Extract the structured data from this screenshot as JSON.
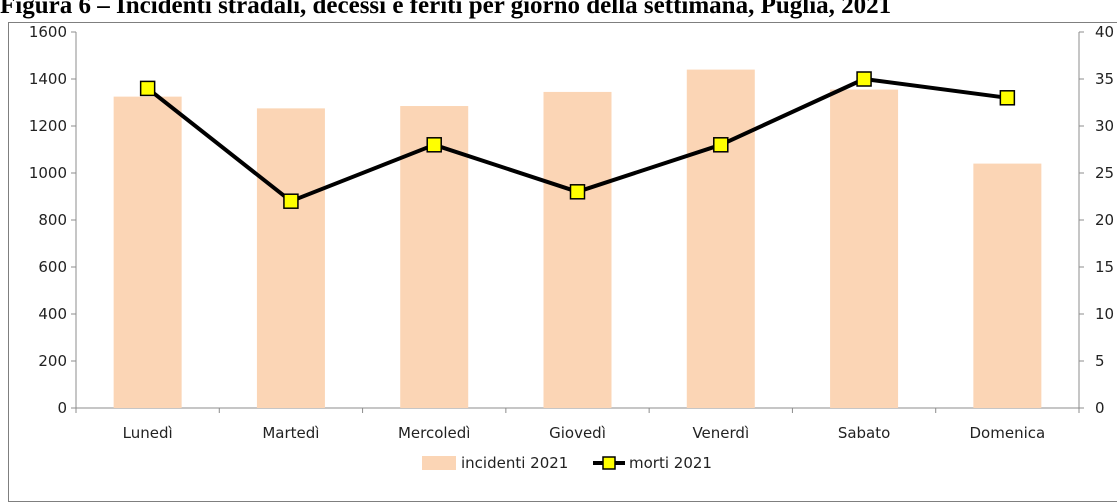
{
  "chart_data": {
    "type": "bar",
    "title": "Figura 6 – Incidenti stradali, decessi e feriti per giorno della settimana, Puglia, 2021",
    "categories": [
      "Lunedì",
      "Martedì",
      "Mercoledì",
      "Giovedì",
      "Venerdì",
      "Sabato",
      "Domenica"
    ],
    "series": [
      {
        "name": "incidenti 2021",
        "type": "bar",
        "axis": "left",
        "color": "#fbd5b5",
        "values": [
          1325,
          1275,
          1285,
          1345,
          1440,
          1355,
          1040
        ]
      },
      {
        "name": "morti 2021",
        "type": "line",
        "axis": "right",
        "color": "#000000",
        "marker_color": "#ffff00",
        "values": [
          34,
          22,
          28,
          23,
          28,
          35,
          33
        ]
      }
    ],
    "y_left": {
      "ylim": [
        0,
        1600
      ],
      "ticks": [
        0,
        200,
        400,
        600,
        800,
        1000,
        1200,
        1400,
        1600
      ]
    },
    "y_right": {
      "ylim": [
        0,
        40
      ],
      "ticks": [
        0,
        5,
        10,
        15,
        20,
        25,
        30,
        35,
        40
      ]
    },
    "grid": false,
    "legend": "bottom"
  }
}
